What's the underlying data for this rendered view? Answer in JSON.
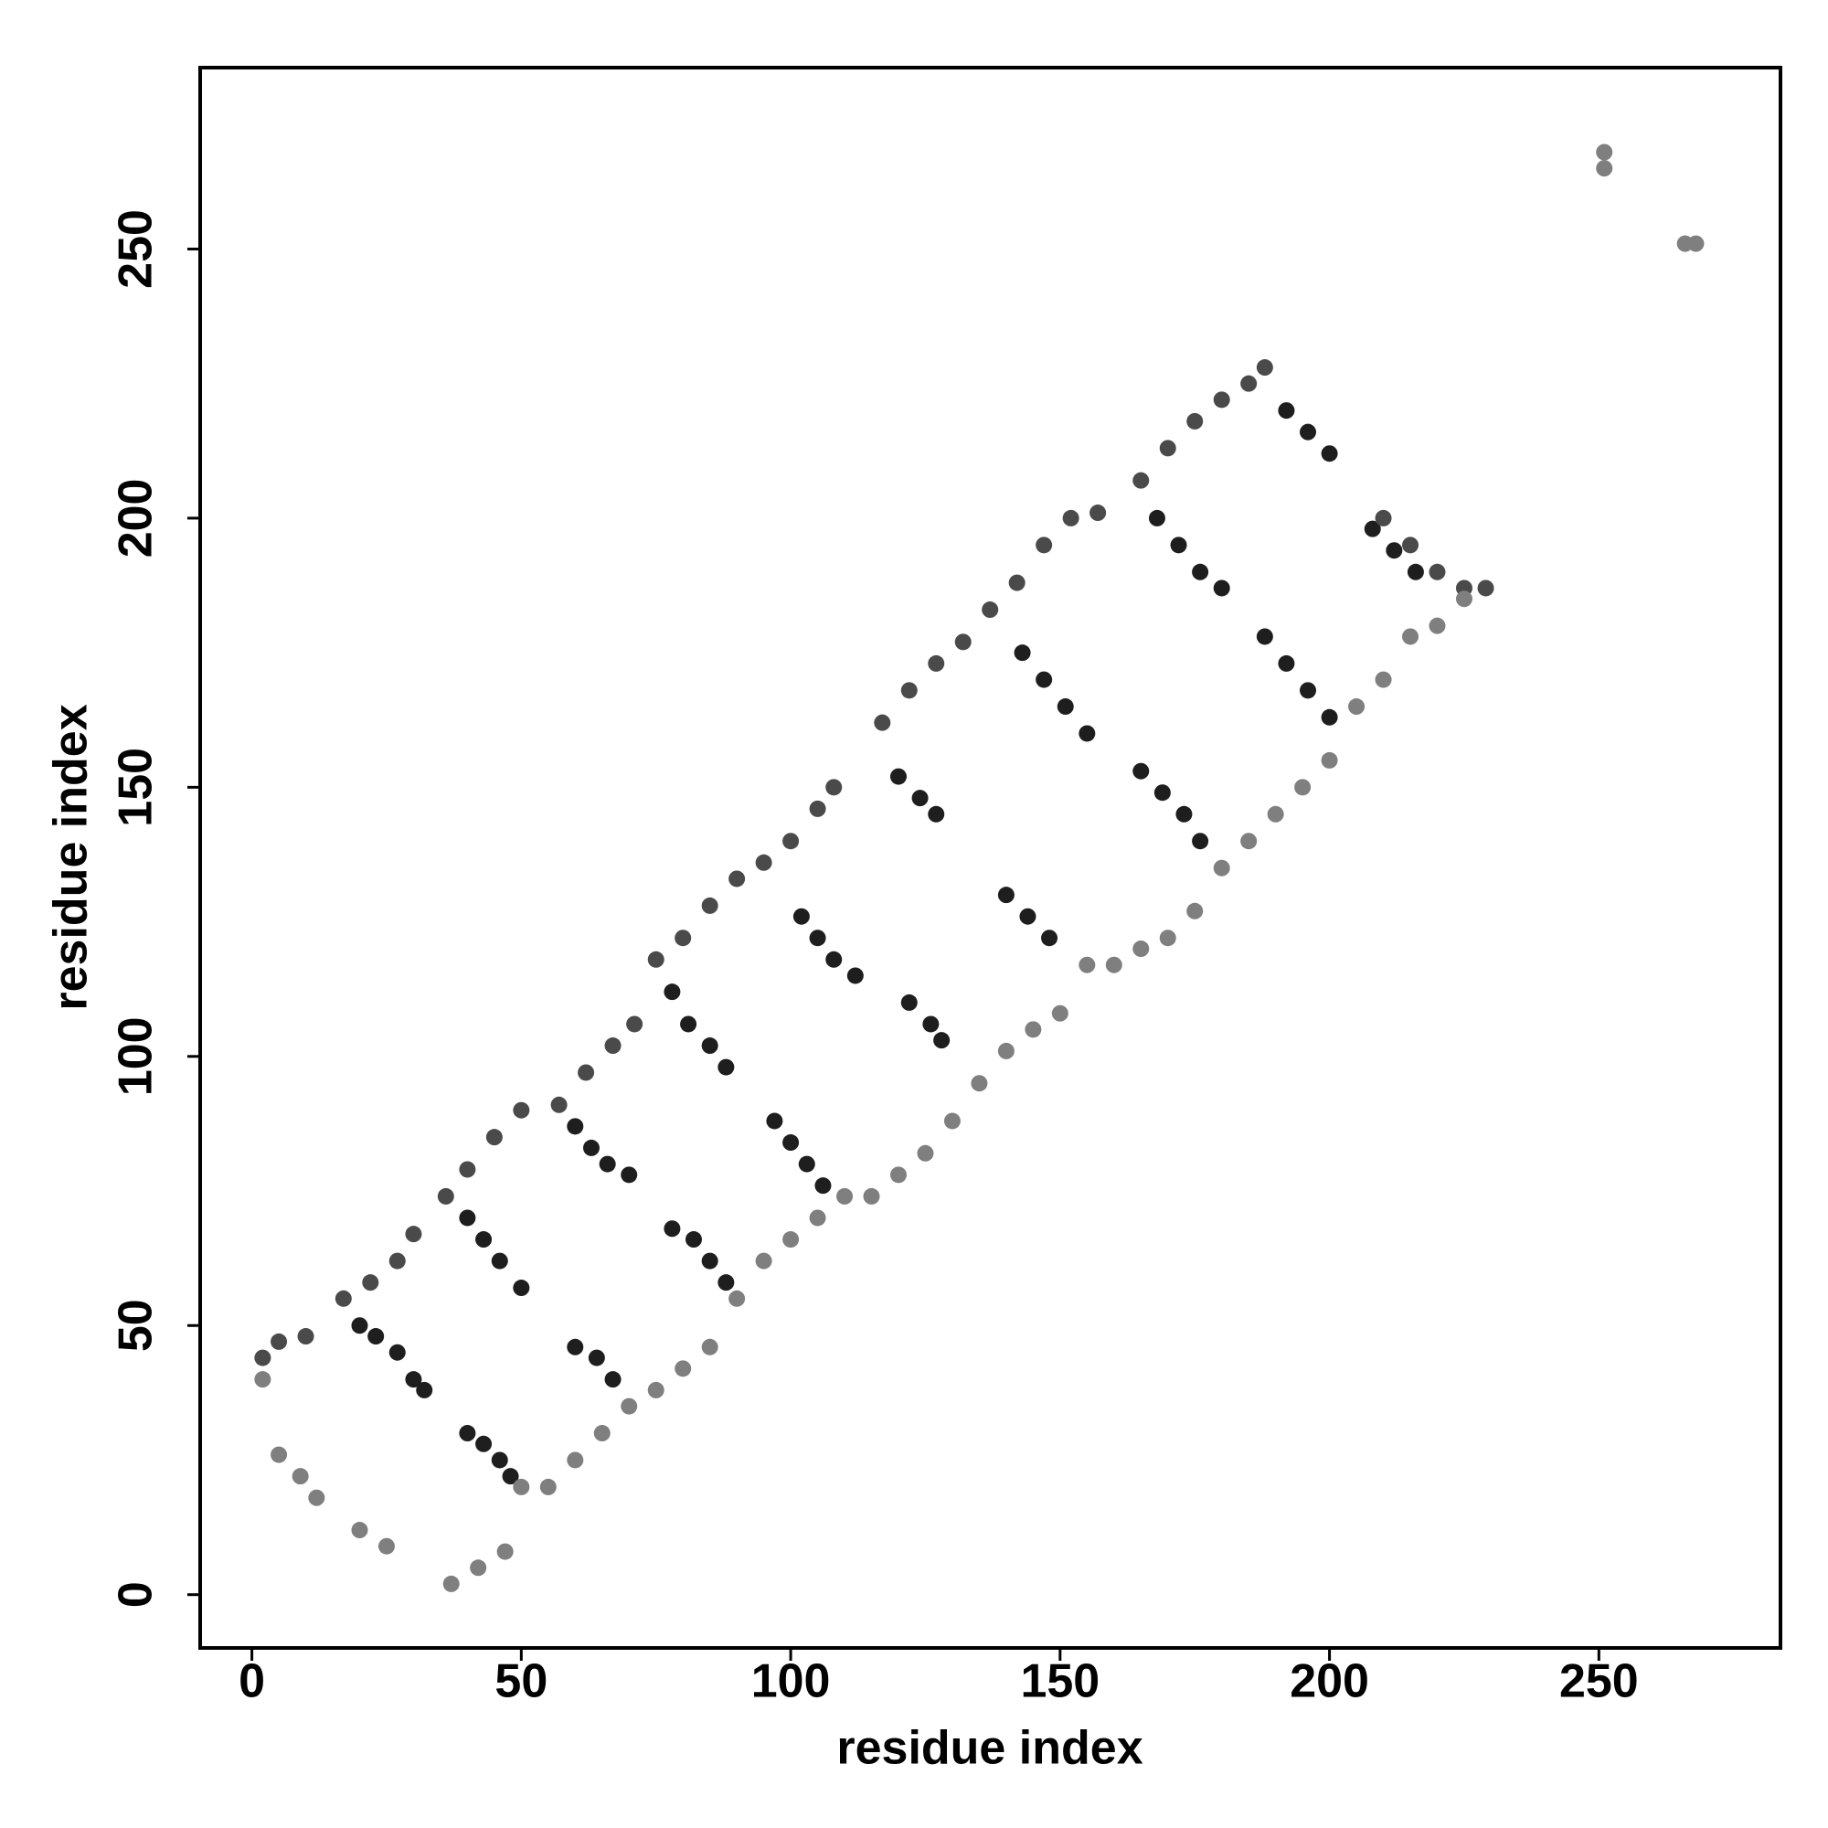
{
  "chart_data": {
    "type": "scatter",
    "x_label": "residue index",
    "y_label": "residue index",
    "xlim": [
      -9.6,
      283.7
    ],
    "ylim": [
      -9.9,
      283.7
    ],
    "xticks": [
      0,
      50,
      100,
      150,
      200,
      250
    ],
    "yticks": [
      0,
      50,
      100,
      150,
      200,
      250
    ],
    "series": [
      {
        "color": "#1e1e1e",
        "x": [
          20,
          23,
          27,
          30,
          32,
          40,
          43,
          46,
          50,
          40,
          43,
          46,
          48,
          60,
          63,
          66,
          70,
          60,
          64,
          67,
          78,
          82,
          85,
          88,
          78,
          81,
          85,
          88,
          97,
          100,
          103,
          106,
          102,
          105,
          108,
          112,
          120,
          124,
          127,
          122,
          126,
          128,
          143,
          147,
          151,
          155,
          140,
          144,
          148,
          165,
          169,
          173,
          176,
          168,
          172,
          176,
          180,
          188,
          192,
          196,
          200,
          208,
          212,
          216,
          192,
          196,
          200
        ],
        "y": [
          50,
          48,
          45,
          40,
          38,
          70,
          66,
          62,
          57,
          30,
          28,
          25,
          22,
          87,
          83,
          80,
          78,
          46,
          44,
          40,
          68,
          66,
          62,
          58,
          112,
          106,
          102,
          98,
          88,
          84,
          80,
          76,
          126,
          122,
          118,
          115,
          152,
          148,
          145,
          110,
          106,
          103,
          175,
          170,
          165,
          160,
          130,
          126,
          122,
          153,
          149,
          145,
          140,
          200,
          195,
          190,
          187,
          178,
          173,
          168,
          163,
          198,
          194,
          190,
          220,
          216,
          212
        ]
      },
      {
        "color": "#4a4a4a",
        "x": [
          2,
          5,
          10,
          17,
          22,
          27,
          30,
          36,
          40,
          45,
          50,
          57,
          62,
          67,
          71,
          75,
          80,
          85,
          90,
          95,
          100,
          105,
          108,
          117,
          122,
          127,
          132,
          137,
          142,
          147,
          152,
          157,
          165,
          170,
          175,
          180,
          185,
          188,
          210,
          215,
          220,
          225,
          229
        ],
        "y": [
          44,
          47,
          48,
          55,
          58,
          62,
          67,
          74,
          79,
          85,
          90,
          91,
          97,
          102,
          106,
          118,
          122,
          128,
          133,
          136,
          140,
          146,
          150,
          162,
          168,
          173,
          177,
          183,
          188,
          195,
          200,
          201,
          207,
          213,
          218,
          222,
          225,
          228,
          200,
          195,
          190,
          187,
          187
        ]
      },
      {
        "color": "#7f7f7f",
        "x": [
          2,
          5,
          9,
          12,
          20,
          25,
          37,
          42,
          47,
          50,
          55,
          60,
          65,
          70,
          75,
          80,
          85,
          90,
          95,
          100,
          105,
          110,
          115,
          120,
          125,
          130,
          135,
          140,
          145,
          150,
          155,
          160,
          165,
          170,
          175,
          180,
          185,
          190,
          195,
          200,
          205,
          210,
          215,
          220,
          225,
          251,
          251,
          266,
          268
        ],
        "y": [
          40,
          26,
          22,
          18,
          12,
          9,
          2,
          5,
          8,
          20,
          20,
          25,
          30,
          35,
          38,
          42,
          46,
          55,
          62,
          66,
          70,
          74,
          74,
          78,
          82,
          88,
          95,
          101,
          105,
          108,
          117,
          117,
          120,
          122,
          127,
          135,
          140,
          145,
          150,
          155,
          165,
          170,
          178,
          180,
          185,
          268,
          265,
          251,
          251
        ]
      }
    ]
  }
}
